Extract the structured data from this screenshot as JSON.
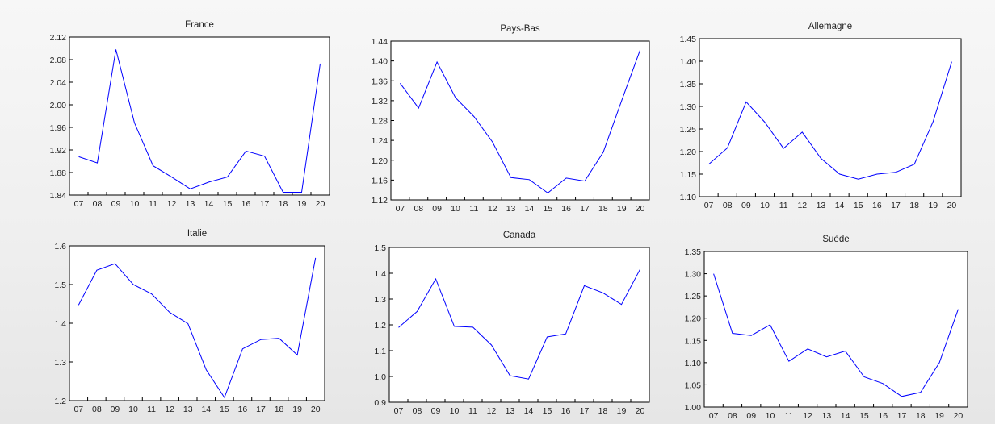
{
  "chart_data": [
    {
      "type": "line",
      "title": "France",
      "categories": [
        "07",
        "08",
        "09",
        "10",
        "11",
        "12",
        "13",
        "14",
        "15",
        "16",
        "17",
        "18",
        "19",
        "20"
      ],
      "values": [
        1.908,
        1.897,
        2.098,
        1.968,
        1.892,
        1.872,
        1.851,
        1.863,
        1.872,
        1.918,
        1.909,
        1.845,
        1.845,
        2.073
      ],
      "ylim": [
        1.84,
        2.12
      ],
      "yticks": [
        "1.84",
        "1.88",
        "1.92",
        "1.96",
        "2.00",
        "2.04",
        "2.08",
        "2.12"
      ],
      "color": "#0000ff",
      "grid": false
    },
    {
      "type": "line",
      "title": "Pays-Bas",
      "categories": [
        "07",
        "08",
        "09",
        "10",
        "11",
        "12",
        "13",
        "14",
        "15",
        "16",
        "17",
        "18",
        "19",
        "20"
      ],
      "values": [
        1.355,
        1.305,
        1.398,
        1.326,
        1.288,
        1.237,
        1.165,
        1.161,
        1.134,
        1.164,
        1.158,
        1.216,
        1.32,
        1.422
      ],
      "ylim": [
        1.12,
        1.44
      ],
      "yticks": [
        "1.12",
        "1.16",
        "1.20",
        "1.24",
        "1.28",
        "1.32",
        "1.36",
        "1.40",
        "1.44"
      ],
      "color": "#0000ff",
      "grid": false
    },
    {
      "type": "line",
      "title": "Allemagne",
      "categories": [
        "07",
        "08",
        "09",
        "10",
        "11",
        "12",
        "13",
        "14",
        "15",
        "16",
        "17",
        "18",
        "19",
        "20"
      ],
      "values": [
        1.172,
        1.208,
        1.31,
        1.265,
        1.207,
        1.243,
        1.185,
        1.15,
        1.139,
        1.15,
        1.154,
        1.172,
        1.266,
        1.399
      ],
      "ylim": [
        1.1,
        1.45
      ],
      "yticks": [
        "1.10",
        "1.15",
        "1.20",
        "1.25",
        "1.30",
        "1.35",
        "1.40",
        "1.45"
      ],
      "color": "#0000ff",
      "grid": false
    },
    {
      "type": "line",
      "title": "Italie",
      "categories": [
        "07",
        "08",
        "09",
        "10",
        "11",
        "12",
        "13",
        "14",
        "15",
        "16",
        "17",
        "18",
        "19",
        "20"
      ],
      "values": [
        1.447,
        1.537,
        1.554,
        1.5,
        1.476,
        1.428,
        1.399,
        1.28,
        1.208,
        1.334,
        1.358,
        1.361,
        1.318,
        1.569
      ],
      "ylim": [
        1.2,
        1.6
      ],
      "yticks": [
        "1.2",
        "1.3",
        "1.4",
        "1.5",
        "1.6"
      ],
      "color": "#0000ff",
      "grid": false
    },
    {
      "type": "line",
      "title": "Canada",
      "categories": [
        "07",
        "08",
        "09",
        "10",
        "11",
        "12",
        "13",
        "14",
        "15",
        "16",
        "17",
        "18",
        "19",
        "20"
      ],
      "values": [
        1.19,
        1.252,
        1.378,
        1.194,
        1.191,
        1.122,
        1.003,
        0.99,
        1.153,
        1.165,
        1.352,
        1.324,
        1.279,
        1.415
      ],
      "ylim": [
        0.9,
        1.5
      ],
      "yticks": [
        "0.9",
        "1.0",
        "1.1",
        "1.2",
        "1.3",
        "1.4",
        "1.5"
      ],
      "color": "#0000ff",
      "grid": false
    },
    {
      "type": "line",
      "title": "Suède",
      "categories": [
        "07",
        "08",
        "09",
        "10",
        "11",
        "12",
        "13",
        "14",
        "15",
        "16",
        "17",
        "18",
        "19",
        "20"
      ],
      "values": [
        1.3,
        1.166,
        1.161,
        1.185,
        1.103,
        1.131,
        1.113,
        1.126,
        1.068,
        1.053,
        1.024,
        1.033,
        1.1,
        1.22
      ],
      "ylim": [
        1.0,
        1.35
      ],
      "yticks": [
        "1.00",
        "1.05",
        "1.10",
        "1.15",
        "1.20",
        "1.25",
        "1.30",
        "1.35"
      ],
      "color": "#0000ff",
      "grid": false
    }
  ]
}
